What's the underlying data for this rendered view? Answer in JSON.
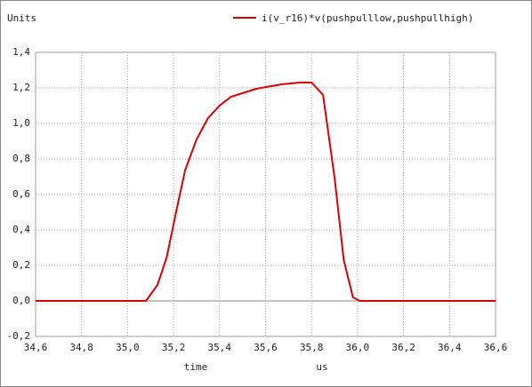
{
  "chart_data": {
    "type": "line",
    "y_unit_label": "Units",
    "x_label": "time",
    "x_unit_label": "us",
    "series": [
      {
        "name": "i(v_r16)*v(pushpulllow,pushpullhigh)",
        "color": "#dd0000",
        "x": [
          34.6,
          35.08,
          35.13,
          35.17,
          35.21,
          35.25,
          35.3,
          35.35,
          35.4,
          35.45,
          35.56,
          35.67,
          35.75,
          35.8,
          35.85,
          35.9,
          35.94,
          35.98,
          36.01,
          36.6
        ],
        "values": [
          0,
          0,
          0.09,
          0.245,
          0.495,
          0.735,
          0.91,
          1.03,
          1.1,
          1.15,
          1.195,
          1.22,
          1.23,
          1.23,
          1.16,
          0.695,
          0.23,
          0.02,
          0,
          0
        ]
      }
    ],
    "xlim": [
      34.6,
      36.6
    ],
    "xticks": [
      {
        "value": 34.6,
        "label": "34,6"
      },
      {
        "value": 34.8,
        "label": "34,8"
      },
      {
        "value": 35.0,
        "label": "35,0"
      },
      {
        "value": 35.2,
        "label": "35,2"
      },
      {
        "value": 35.4,
        "label": "35,4"
      },
      {
        "value": 35.6,
        "label": "35,6"
      },
      {
        "value": 35.8,
        "label": "35,8"
      },
      {
        "value": 36.0,
        "label": "36,0"
      },
      {
        "value": 36.2,
        "label": "36,2"
      },
      {
        "value": 36.4,
        "label": "36,4"
      },
      {
        "value": 36.6,
        "label": "36,6"
      }
    ],
    "ylim": [
      -0.2,
      1.4
    ],
    "yticks": [
      {
        "value": -0.2,
        "label": "-0,2"
      },
      {
        "value": 0,
        "label": "0,0"
      },
      {
        "value": 0.2,
        "label": "0,2"
      },
      {
        "value": 0.4,
        "label": "0,4"
      },
      {
        "value": 0.6,
        "label": "0,6"
      },
      {
        "value": 0.8,
        "label": "0,8"
      },
      {
        "value": 1.0,
        "label": "1,0"
      },
      {
        "value": 1.2,
        "label": "1,2"
      },
      {
        "value": 1.4,
        "label": "1,4"
      }
    ],
    "grid": true
  }
}
